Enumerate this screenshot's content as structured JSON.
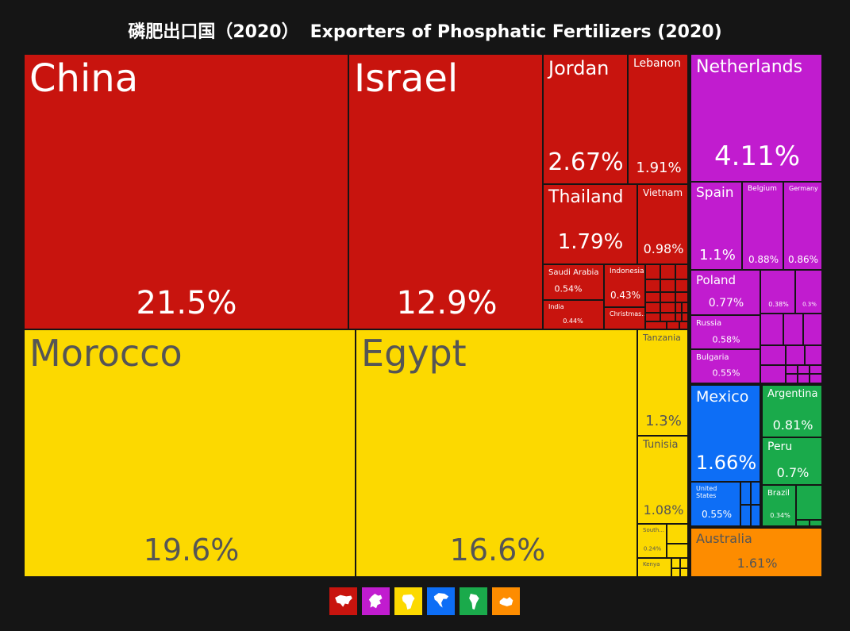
{
  "title_cn": "磷肥出口国（2020）",
  "title_en": "Exporters of Phosphatic Fertilizers (2020)",
  "colors": {
    "asia": "#c8140e",
    "africa": "#fcd900",
    "europe": "#c11ccf",
    "north_america": "#0d6ef6",
    "south_america": "#1aaa4b",
    "oceania": "#fd8c00"
  },
  "chart_data": {
    "type": "treemap",
    "title": "Exporters of Phosphatic Fertilizers (2020)",
    "unit": "% of world exports",
    "items": [
      {
        "name": "China",
        "value": 21.5,
        "label": "21.5%",
        "region": "asia"
      },
      {
        "name": "Israel",
        "value": 12.9,
        "label": "12.9%",
        "region": "asia"
      },
      {
        "name": "Jordan",
        "value": 2.67,
        "label": "2.67%",
        "region": "asia"
      },
      {
        "name": "Lebanon",
        "value": 1.91,
        "label": "1.91%",
        "region": "asia"
      },
      {
        "name": "Thailand",
        "value": 1.79,
        "label": "1.79%",
        "region": "asia"
      },
      {
        "name": "Vietnam",
        "value": 0.98,
        "label": "0.98%",
        "region": "asia"
      },
      {
        "name": "Saudi Arabia",
        "value": 0.54,
        "label": "0.54%",
        "region": "asia"
      },
      {
        "name": "Indonesia",
        "value": 0.43,
        "label": "0.43%",
        "region": "asia"
      },
      {
        "name": "India",
        "value": 0.44,
        "label": "0.44%",
        "region": "asia"
      },
      {
        "name": "Christmas...",
        "value": null,
        "label": "",
        "region": "asia"
      },
      {
        "name": "Morocco",
        "value": 19.6,
        "label": "19.6%",
        "region": "africa"
      },
      {
        "name": "Egypt",
        "value": 16.6,
        "label": "16.6%",
        "region": "africa"
      },
      {
        "name": "Tanzania",
        "value": 1.3,
        "label": "1.3%",
        "region": "africa"
      },
      {
        "name": "Tunisia",
        "value": 1.08,
        "label": "1.08%",
        "region": "africa"
      },
      {
        "name": "South...",
        "value": 0.24,
        "label": "0.24%",
        "region": "africa"
      },
      {
        "name": "Kenya",
        "value": null,
        "label": "",
        "region": "africa"
      },
      {
        "name": "Netherlands",
        "value": 4.11,
        "label": "4.11%",
        "region": "europe"
      },
      {
        "name": "Spain",
        "value": 1.1,
        "label": "1.1%",
        "region": "europe"
      },
      {
        "name": "Belgium",
        "value": 0.88,
        "label": "0.88%",
        "region": "europe"
      },
      {
        "name": "Germany",
        "value": 0.86,
        "label": "0.86%",
        "region": "europe"
      },
      {
        "name": "Poland",
        "value": 0.77,
        "label": "0.77%",
        "region": "europe"
      },
      {
        "name": "",
        "value": 0.38,
        "label": "0.38%",
        "region": "europe"
      },
      {
        "name": "",
        "value": 0.3,
        "label": "0.3%",
        "region": "europe"
      },
      {
        "name": "Russia",
        "value": 0.58,
        "label": "0.58%",
        "region": "europe"
      },
      {
        "name": "Bulgaria",
        "value": 0.55,
        "label": "0.55%",
        "region": "europe"
      },
      {
        "name": "Mexico",
        "value": 1.66,
        "label": "1.66%",
        "region": "north_america"
      },
      {
        "name": "United States",
        "value": 0.55,
        "label": "0.55%",
        "region": "north_america"
      },
      {
        "name": "Argentina",
        "value": 0.81,
        "label": "0.81%",
        "region": "south_america"
      },
      {
        "name": "Peru",
        "value": 0.7,
        "label": "0.7%",
        "region": "south_america"
      },
      {
        "name": "Brazil",
        "value": 0.34,
        "label": "0.34%",
        "region": "south_america"
      },
      {
        "name": "Australia",
        "value": 1.61,
        "label": "1.61%",
        "region": "oceania"
      }
    ]
  },
  "legend": [
    {
      "region": "asia",
      "icon": "asia-map-icon"
    },
    {
      "region": "europe",
      "icon": "europe-map-icon"
    },
    {
      "region": "africa",
      "icon": "africa-map-icon"
    },
    {
      "region": "north_america",
      "icon": "north-america-map-icon"
    },
    {
      "region": "south_america",
      "icon": "south-america-map-icon"
    },
    {
      "region": "oceania",
      "icon": "oceania-map-icon"
    }
  ]
}
